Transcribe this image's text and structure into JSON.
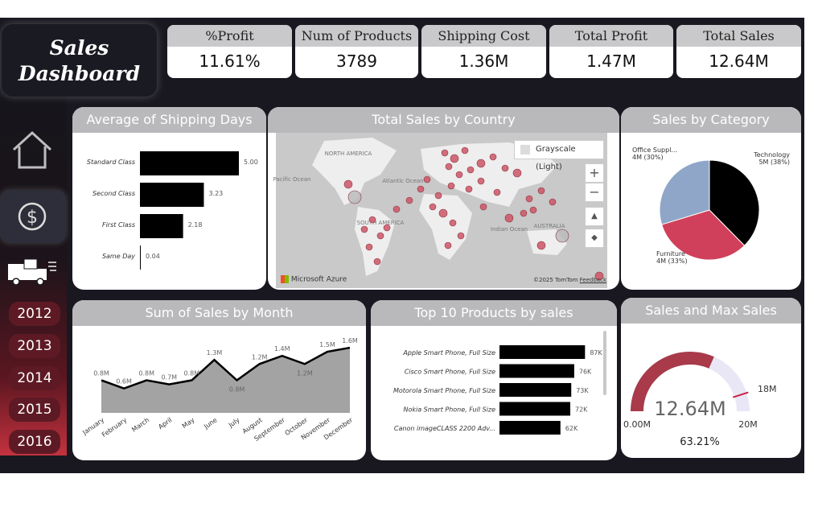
{
  "dashboard": {
    "title_line1": "Sales",
    "title_line2": "Dashboard"
  },
  "kpis": [
    {
      "label": "%Profit",
      "value": "11.61%"
    },
    {
      "label": "Num of Products",
      "value": "3789"
    },
    {
      "label": "Shipping Cost",
      "value": "1.36M"
    },
    {
      "label": "Total Profit",
      "value": "1.47M"
    },
    {
      "label": "Total Sales",
      "value": "12.64M"
    }
  ],
  "nav": {
    "home_icon": "home-icon",
    "sales_icon": "dollar-icon",
    "shipping_icon": "truck-icon"
  },
  "years": [
    "2012",
    "2013",
    "2014",
    "2015",
    "2016"
  ],
  "shipping": {
    "title": "Average of Shipping Days",
    "categories": [
      "Standard Class",
      "Second Class",
      "First Class",
      "Same Day"
    ],
    "values": [
      5.0,
      3.23,
      2.18,
      0.04
    ],
    "labels": [
      "5.00",
      "3.23",
      "2.18",
      "0.04"
    ]
  },
  "map": {
    "title": "Total Sales by Country",
    "style_label": "Grayscale (Light)",
    "zoom_in": "+",
    "zoom_out": "−",
    "attribution_left": "Microsoft Azure",
    "attribution_right": "©2025 TomTom",
    "feedback": "Feedback",
    "labels": [
      "NORTH AMERICA",
      "Pacific Ocean",
      "Atlantic Ocean",
      "SOUTH AMERICA",
      "Indian Ocean",
      "AUSTRALIA"
    ]
  },
  "category": {
    "title": "Sales by Category",
    "slices": [
      {
        "name": "Technology",
        "label": "5M (38%)",
        "value": 38,
        "color": "#000000"
      },
      {
        "name": "Furniture",
        "label": "4M (33%)",
        "value": 33,
        "color": "#d0405a"
      },
      {
        "name": "Office Suppl...",
        "label": "4M (30%)",
        "value": 30,
        "color": "#8fa6c8"
      }
    ]
  },
  "monthly": {
    "title": "Sum of Sales by Month",
    "months": [
      "January",
      "February",
      "March",
      "April",
      "May",
      "June",
      "July",
      "August",
      "September",
      "October",
      "November",
      "December"
    ],
    "values": [
      0.8,
      0.6,
      0.8,
      0.7,
      0.8,
      1.3,
      0.8,
      1.2,
      1.4,
      1.2,
      1.5,
      1.6
    ],
    "labels": [
      "0.8M",
      "0.6M",
      "0.8M",
      "0.7M",
      "0.8M",
      "1.3M",
      "0.8M",
      "1.2M",
      "1.4M",
      "1.2M",
      "1.5M",
      "1.6M"
    ]
  },
  "top_products": {
    "title": "Top 10 Products by sales",
    "names": [
      "Apple Smart Phone, Full Size",
      "Cisco Smart Phone, Full Size",
      "Motorola Smart Phone, Full Size",
      "Nokia Smart Phone, Full Size",
      "Canon imageCLASS 2200 Adv..."
    ],
    "values": [
      87,
      76,
      73,
      72,
      62
    ],
    "labels": [
      "87K",
      "76K",
      "73K",
      "72K",
      "62K"
    ]
  },
  "gauge": {
    "title": "Sales and Max Sales",
    "value_label": "12.64M",
    "percent": "63.21%",
    "min_label": "0.00M",
    "max_label": "20M",
    "target_label": "18M",
    "value": 12.64,
    "min": 0,
    "max": 20,
    "target": 18
  },
  "colors": {
    "accent": "#c4323f",
    "background": "#191820",
    "header_gray": "#b9b9bb"
  }
}
